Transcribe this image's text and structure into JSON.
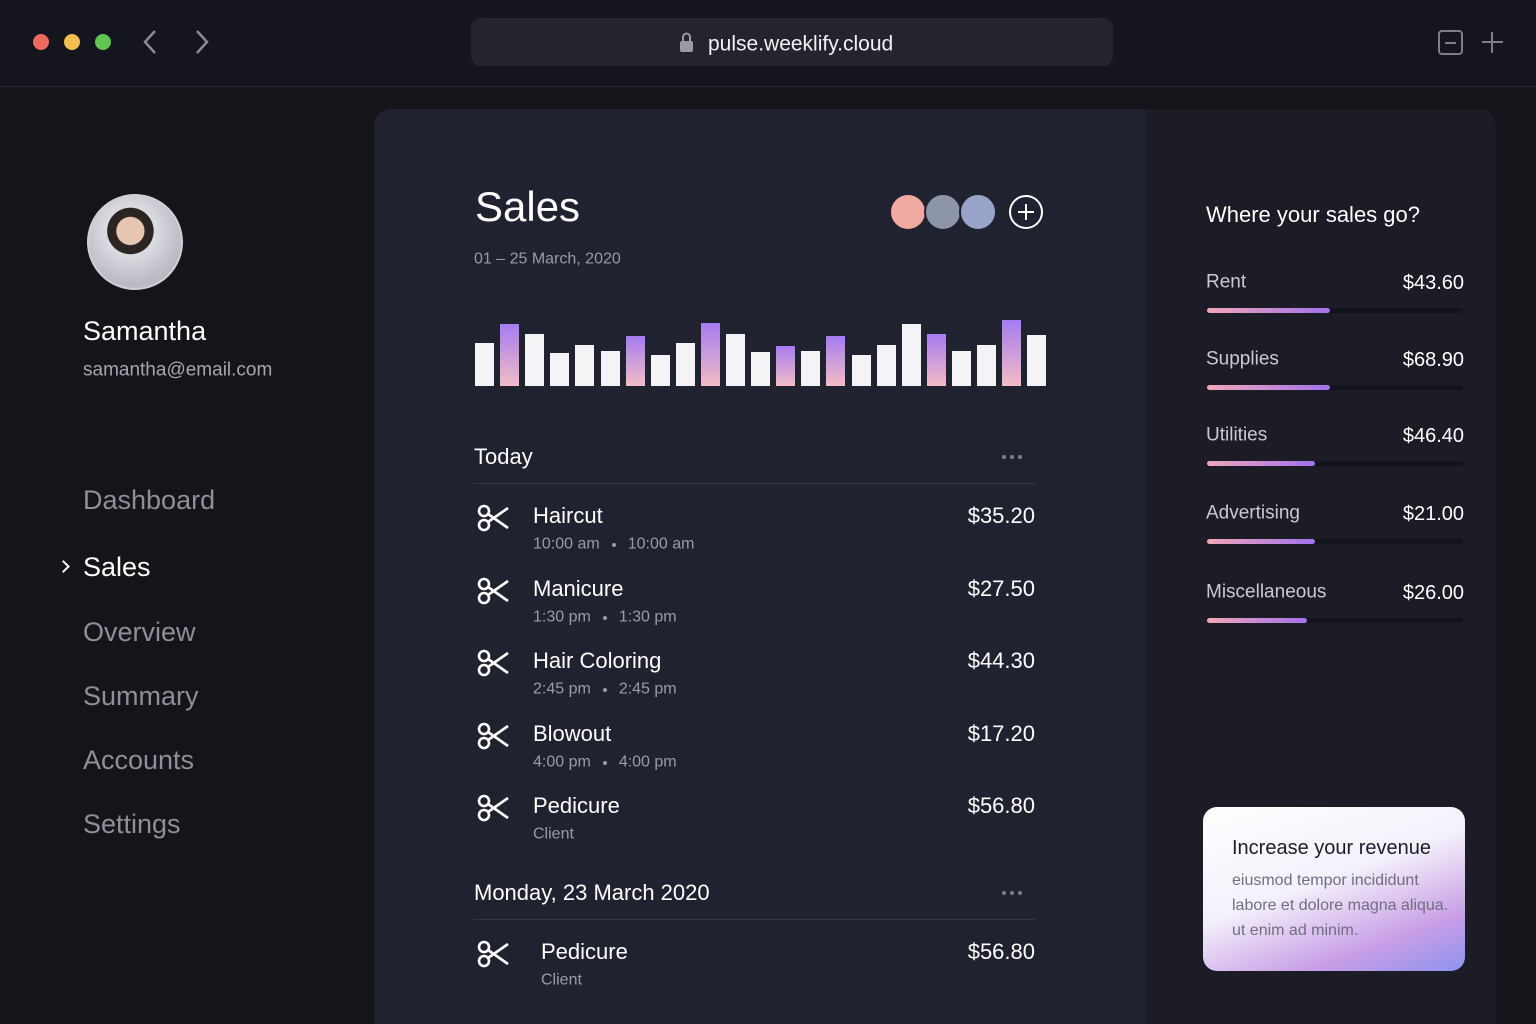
{
  "browser": {
    "url": "pulse.weeklify.cloud"
  },
  "profile": {
    "name": "Samantha",
    "email": "samantha@email.com"
  },
  "nav": {
    "items": [
      "Dashboard",
      "Sales",
      "Overview",
      "Summary",
      "Accounts",
      "Settings"
    ],
    "active": 1
  },
  "sales": {
    "title": "Sales",
    "date_range": "01 – 25 March, 2020",
    "chart": {
      "type": "bar",
      "values": [
        43,
        62,
        52,
        33,
        41,
        35,
        50,
        31,
        43,
        63,
        52,
        34,
        40,
        35,
        50,
        31,
        41,
        62,
        52,
        35,
        41,
        66,
        51
      ],
      "highlighted": [
        1,
        6,
        9,
        12,
        14,
        18,
        21
      ],
      "color": "#f4f4f6",
      "highlight_color": "#a57cf0"
    }
  },
  "groups": [
    {
      "title": "Today",
      "items": [
        {
          "name": "Haircut",
          "times": [
            "10:00 am",
            "10:00 am"
          ],
          "amount": "$35.20"
        },
        {
          "name": "Manicure",
          "times": [
            "1:30 pm",
            "1:30 pm"
          ],
          "amount": "$27.50"
        },
        {
          "name": "Hair Coloring",
          "times": [
            "2:45 pm",
            "2:45 pm"
          ],
          "amount": "$44.30"
        },
        {
          "name": "Blowout",
          "times": [
            "4:00 pm",
            "4:00 pm"
          ],
          "amount": "$17.20"
        },
        {
          "name": "Pedicure",
          "note": "Client",
          "amount": "$56.80"
        }
      ]
    },
    {
      "title": "Monday, 23 March 2020",
      "items": [
        {
          "name": "Pedicure",
          "note": "Client",
          "amount": "$56.80"
        }
      ]
    }
  ],
  "breakdown": {
    "title": "Where your sales go?",
    "items": [
      {
        "label": "Rent",
        "amount": "$43.60",
        "progress": 48
      },
      {
        "label": "Supplies",
        "amount": "$68.90",
        "progress": 48
      },
      {
        "label": "Utilities",
        "amount": "$46.40",
        "progress": 42
      },
      {
        "label": "Advertising",
        "amount": "$21.00",
        "progress": 42
      },
      {
        "label": "Miscellaneous",
        "amount": "$26.00",
        "progress": 39
      }
    ]
  },
  "promo": {
    "title": "Increase your revenue",
    "body": "eiusmod tempor incididunt labore et dolore magna aliqua. ut enim ad minim."
  }
}
